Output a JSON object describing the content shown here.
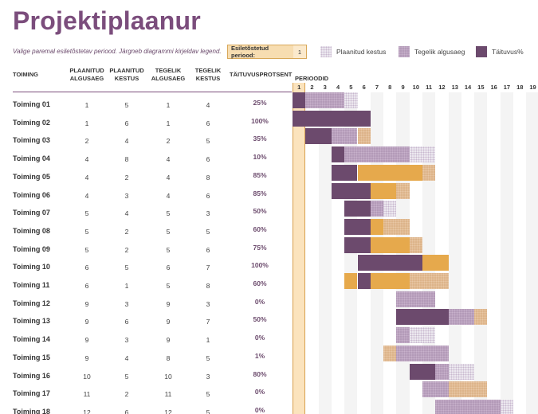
{
  "page": {
    "title": "Projektiplaanur",
    "subtitle": "Valige paremal esiletõstetav periood.  Järgneb diagrammi kirjeldav legend."
  },
  "period_selector": {
    "label": "Esiletõstetud periood:",
    "value": "1"
  },
  "legend": [
    {
      "label": "Plaanitud kestus",
      "swatch": "planned"
    },
    {
      "label": "Tegelik algusaeg",
      "swatch": "actual"
    },
    {
      "label": "Täituvus%",
      "swatch": "complete"
    }
  ],
  "headers": {
    "activity": "TOIMING",
    "plan_start": "PLAANITUD ALGUSAEG",
    "plan_duration": "PLAANITUD KESTUS",
    "actual_start": "TEGELIK ALGUSAEG",
    "actual_duration": "TEGELIK KESTUS",
    "percent_complete": "TÄITUVUSPROTSENT",
    "periods": "PERIOODID"
  },
  "period_numbers": [
    "1",
    "2",
    "3",
    "4",
    "5",
    "6",
    "7",
    "8",
    "9",
    "10",
    "11",
    "12",
    "13",
    "14",
    "15",
    "16",
    "17",
    "18",
    "19"
  ],
  "highlighted_period": 1,
  "colors": {
    "accent": "#7b4d7c",
    "complete": "#6c4a6d",
    "over_plan": "#e6a94c",
    "highlight": "#fbe3bd"
  },
  "activities": [
    {
      "name": "Toiming 01",
      "plan_start": 1,
      "plan_duration": 5,
      "actual_start": 1,
      "actual_duration": 4,
      "percent": "25%"
    },
    {
      "name": "Toiming 02",
      "plan_start": 1,
      "plan_duration": 6,
      "actual_start": 1,
      "actual_duration": 6,
      "percent": "100%"
    },
    {
      "name": "Toiming 03",
      "plan_start": 2,
      "plan_duration": 4,
      "actual_start": 2,
      "actual_duration": 5,
      "percent": "35%"
    },
    {
      "name": "Toiming 04",
      "plan_start": 4,
      "plan_duration": 8,
      "actual_start": 4,
      "actual_duration": 6,
      "percent": "10%"
    },
    {
      "name": "Toiming 05",
      "plan_start": 4,
      "plan_duration": 2,
      "actual_start": 4,
      "actual_duration": 8,
      "percent": "85%"
    },
    {
      "name": "Toiming 06",
      "plan_start": 4,
      "plan_duration": 3,
      "actual_start": 4,
      "actual_duration": 6,
      "percent": "85%"
    },
    {
      "name": "Toiming 07",
      "plan_start": 5,
      "plan_duration": 4,
      "actual_start": 5,
      "actual_duration": 3,
      "percent": "50%"
    },
    {
      "name": "Toiming 08",
      "plan_start": 5,
      "plan_duration": 2,
      "actual_start": 5,
      "actual_duration": 5,
      "percent": "60%"
    },
    {
      "name": "Toiming 09",
      "plan_start": 5,
      "plan_duration": 2,
      "actual_start": 5,
      "actual_duration": 6,
      "percent": "75%"
    },
    {
      "name": "Toiming 10",
      "plan_start": 6,
      "plan_duration": 5,
      "actual_start": 6,
      "actual_duration": 7,
      "percent": "100%"
    },
    {
      "name": "Toiming 11",
      "plan_start": 6,
      "plan_duration": 1,
      "actual_start": 5,
      "actual_duration": 8,
      "percent": "60%"
    },
    {
      "name": "Toiming 12",
      "plan_start": 9,
      "plan_duration": 3,
      "actual_start": 9,
      "actual_duration": 3,
      "percent": "0%"
    },
    {
      "name": "Toiming 13",
      "plan_start": 9,
      "plan_duration": 6,
      "actual_start": 9,
      "actual_duration": 7,
      "percent": "50%"
    },
    {
      "name": "Toiming 14",
      "plan_start": 9,
      "plan_duration": 3,
      "actual_start": 9,
      "actual_duration": 1,
      "percent": "0%"
    },
    {
      "name": "Toiming 15",
      "plan_start": 9,
      "plan_duration": 4,
      "actual_start": 8,
      "actual_duration": 5,
      "percent": "1%"
    },
    {
      "name": "Toiming 16",
      "plan_start": 10,
      "plan_duration": 5,
      "actual_start": 10,
      "actual_duration": 3,
      "percent": "80%"
    },
    {
      "name": "Toiming 17",
      "plan_start": 11,
      "plan_duration": 2,
      "actual_start": 11,
      "actual_duration": 5,
      "percent": "0%"
    },
    {
      "name": "Toiming 18",
      "plan_start": 12,
      "plan_duration": 6,
      "actual_start": 12,
      "actual_duration": 5,
      "percent": "0%"
    }
  ]
}
